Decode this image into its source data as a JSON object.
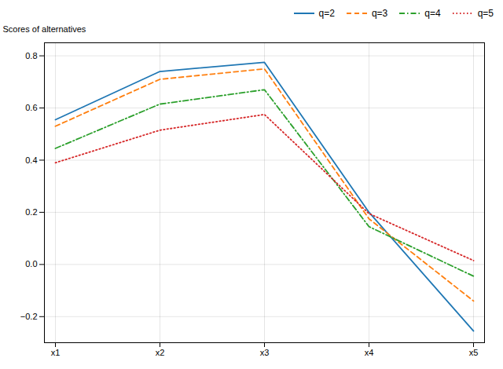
{
  "chart_data": {
    "type": "line",
    "categories": [
      "x1",
      "x2",
      "x3",
      "x4",
      "x5"
    ],
    "series": [
      {
        "name": "q=2",
        "color": "#1f77b4",
        "line_style": "solid",
        "values": [
          0.555,
          0.74,
          0.775,
          0.2,
          -0.255
        ]
      },
      {
        "name": "q=3",
        "color": "#ff7f0e",
        "line_style": "dashed",
        "values": [
          0.53,
          0.71,
          0.75,
          0.175,
          -0.14
        ]
      },
      {
        "name": "q=4",
        "color": "#2ca02c",
        "line_style": "dashdot",
        "values": [
          0.445,
          0.615,
          0.67,
          0.145,
          -0.045
        ]
      },
      {
        "name": "q=5",
        "color": "#d62728",
        "line_style": "dotted",
        "values": [
          0.39,
          0.515,
          0.575,
          0.195,
          0.015
        ]
      }
    ],
    "ylabel": "Scores of alternatives",
    "ylim": [
      -0.3,
      0.85
    ],
    "yticks": [
      -0.2,
      {
        "value": 0.0,
        "label": "0.0"
      },
      0.2,
      0.4,
      0.6,
      0.8
    ],
    "grid": true,
    "legend": "upper right"
  }
}
